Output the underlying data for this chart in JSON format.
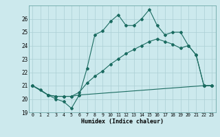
{
  "xlabel": "Humidex (Indice chaleur)",
  "xlim": [
    -0.5,
    23.5
  ],
  "ylim": [
    19,
    27
  ],
  "yticks": [
    19,
    20,
    21,
    22,
    23,
    24,
    25,
    26
  ],
  "xticks": [
    0,
    1,
    2,
    3,
    4,
    5,
    6,
    7,
    8,
    9,
    10,
    11,
    12,
    13,
    14,
    15,
    16,
    17,
    18,
    19,
    20,
    21,
    22,
    23
  ],
  "bg_color": "#cce9ed",
  "line_color": "#1a6b60",
  "grid_color": "#aacfd4",
  "line1_x": [
    0,
    1,
    2,
    3,
    4,
    5,
    6,
    7,
    8,
    9,
    10,
    11,
    12,
    13,
    14,
    15,
    16,
    17,
    18,
    19,
    20,
    21,
    22,
    23
  ],
  "line1_y": [
    21.0,
    20.7,
    20.3,
    20.0,
    19.8,
    19.3,
    20.3,
    22.3,
    24.8,
    25.1,
    25.8,
    26.3,
    25.5,
    25.5,
    26.0,
    26.7,
    25.5,
    24.8,
    25.0,
    25.0,
    24.0,
    23.3,
    21.0,
    21.0
  ],
  "line2_x": [
    0,
    2,
    3,
    4,
    5,
    6,
    22,
    23
  ],
  "line2_y": [
    21.0,
    20.3,
    20.2,
    20.2,
    20.2,
    20.3,
    21.0,
    21.0
  ],
  "line3_x": [
    0,
    2,
    3,
    4,
    5,
    6,
    7,
    8,
    9,
    10,
    11,
    12,
    13,
    14,
    15,
    16,
    17,
    18,
    19,
    20,
    21,
    22,
    23
  ],
  "line3_y": [
    21.0,
    20.3,
    20.2,
    20.2,
    20.2,
    20.5,
    21.2,
    21.7,
    22.1,
    22.6,
    23.0,
    23.4,
    23.7,
    24.0,
    24.3,
    24.5,
    24.3,
    24.1,
    23.8,
    24.0,
    23.3,
    21.0,
    21.0
  ]
}
